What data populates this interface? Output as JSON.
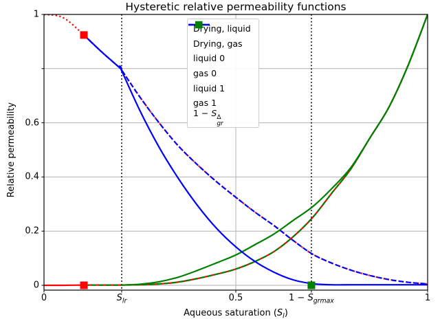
{
  "title": "Hysteretic relative permeability functions",
  "axes": {
    "xlabel": "Aqueous saturation (S_{l})",
    "ylabel": "Relative permeability",
    "xlim": [
      0,
      1
    ],
    "ylim": [
      -0.018,
      1.0
    ],
    "xticks": [
      {
        "value": 0,
        "label": "0"
      },
      {
        "value": 0.2025,
        "label": "S_{lr}"
      },
      {
        "value": 0.5,
        "label": "0.5"
      },
      {
        "value": 0.697,
        "label": "1 − S_{grmax}"
      },
      {
        "value": 1,
        "label": "1"
      }
    ],
    "yticks": [
      {
        "value": 0,
        "label": "0"
      },
      {
        "value": 0.2,
        "label": "0.2"
      },
      {
        "value": 0.4,
        "label": "0.4"
      },
      {
        "value": 0.6,
        "label": "0.6"
      },
      {
        "value": 0.8,
        "label": ""
      },
      {
        "value": 1,
        "label": "1"
      }
    ],
    "grid": {
      "x": [
        0.5
      ],
      "y": [
        0,
        0.2,
        0.4,
        0.6,
        0.8
      ]
    }
  },
  "legend": {
    "items": [
      {
        "label": "Drying, liquid",
        "color": "#ff0000",
        "style": "solid"
      },
      {
        "label": "Drying, gas",
        "color": "#ff0000",
        "style": "dotted"
      },
      {
        "label": "liquid 0",
        "color": "#008000",
        "style": "dashed"
      },
      {
        "label": "gas 0",
        "color": "#0000ff",
        "style": "dashed"
      },
      {
        "label": "liquid 1",
        "color": "#008000",
        "style": "solid"
      },
      {
        "label": "gas 1",
        "color": "#0000ff",
        "style": "solid"
      },
      {
        "label": "1 − S_{gr}^{Δ}",
        "color": "#008000",
        "style": "square"
      }
    ]
  },
  "chart_data": {
    "type": "line",
    "title": "Hysteretic relative permeability functions",
    "xlabel": "Aqueous saturation (S_l)",
    "ylabel": "Relative permeability",
    "xlim": [
      0,
      1
    ],
    "ylim": [
      -0.018,
      1.0
    ],
    "grid": true,
    "legend_position": "upper center",
    "series": [
      {
        "name": "Drying, liquid",
        "color": "#ff0000",
        "style": "solid",
        "x": [
          0,
          0.05,
          0.104,
          0.15,
          0.2,
          0.25,
          0.3,
          0.35,
          0.4,
          0.45,
          0.5,
          0.55,
          0.6,
          0.65,
          0.7,
          0.75,
          0.8,
          0.85,
          0.9,
          0.95,
          1
        ],
        "y": [
          0,
          0,
          0.001,
          0.001,
          0.001,
          0.002,
          0.005,
          0.012,
          0.025,
          0.041,
          0.06,
          0.088,
          0.125,
          0.18,
          0.25,
          0.34,
          0.43,
          0.545,
          0.66,
          0.815,
          1.0
        ]
      },
      {
        "name": "Drying, gas",
        "color": "#ff0000",
        "style": "dotted",
        "x": [
          0,
          0.05,
          0.104,
          0.15,
          0.2,
          0.2,
          0.25,
          0.3,
          0.35,
          0.4,
          0.45,
          0.5,
          0.55,
          0.6,
          0.65,
          0.7,
          0.75,
          0.8,
          0.85,
          0.9,
          0.95,
          1
        ],
        "y": [
          1.0,
          0.988,
          0.924,
          0.862,
          0.8,
          0.8,
          0.695,
          0.6,
          0.515,
          0.445,
          0.382,
          0.325,
          0.27,
          0.22,
          0.165,
          0.115,
          0.082,
          0.056,
          0.036,
          0.021,
          0.011,
          0.005
        ]
      },
      {
        "name": "liquid 0",
        "color": "#008000",
        "style": "dashed",
        "x": [
          0.104,
          0.15,
          0.2,
          0.25,
          0.3,
          0.35,
          0.4,
          0.45,
          0.5,
          0.55,
          0.6,
          0.65,
          0.7,
          0.75,
          0.8,
          0.85,
          0.9,
          0.95,
          1
        ],
        "y": [
          0.001,
          0.001,
          0.001,
          0.002,
          0.005,
          0.012,
          0.025,
          0.041,
          0.06,
          0.088,
          0.125,
          0.18,
          0.25,
          0.34,
          0.43,
          0.545,
          0.66,
          0.815,
          1.0
        ]
      },
      {
        "name": "gas 0",
        "color": "#0000ff",
        "style": "dashed",
        "x": [
          0.104,
          0.15,
          0.2,
          0.2,
          0.25,
          0.3,
          0.35,
          0.4,
          0.45,
          0.5,
          0.55,
          0.6,
          0.65,
          0.7,
          0.75,
          0.8,
          0.85,
          0.9,
          0.95,
          1
        ],
        "y": [
          0.924,
          0.862,
          0.8,
          0.8,
          0.695,
          0.6,
          0.515,
          0.445,
          0.382,
          0.325,
          0.27,
          0.22,
          0.165,
          0.115,
          0.082,
          0.056,
          0.036,
          0.021,
          0.011,
          0.005
        ]
      },
      {
        "name": "liquid 1",
        "color": "#008000",
        "style": "solid",
        "x": [
          0.2,
          0.25,
          0.3,
          0.35,
          0.4,
          0.45,
          0.5,
          0.55,
          0.6,
          0.65,
          0.7,
          0.75,
          0.8,
          0.85,
          0.9,
          0.95,
          1
        ],
        "y": [
          0.001,
          0.004,
          0.013,
          0.03,
          0.055,
          0.083,
          0.112,
          0.15,
          0.19,
          0.24,
          0.29,
          0.357,
          0.435,
          0.545,
          0.66,
          0.815,
          1.0
        ]
      },
      {
        "name": "gas 1",
        "color": "#0000ff",
        "style": "solid",
        "x": [
          0.104,
          0.15,
          0.2,
          0.2,
          0.25,
          0.3,
          0.35,
          0.4,
          0.45,
          0.5,
          0.55,
          0.6,
          0.65,
          0.7,
          0.75,
          0.8,
          0.85,
          0.9,
          0.95,
          1
        ],
        "y": [
          0.924,
          0.862,
          0.8,
          0.8,
          0.645,
          0.51,
          0.395,
          0.295,
          0.21,
          0.142,
          0.088,
          0.048,
          0.02,
          0.006,
          0.002,
          0.002,
          0.002,
          0.002,
          0.002,
          0.002
        ]
      }
    ],
    "vlines": [
      {
        "x": 0.2025,
        "label": "S_{lr}",
        "color": "#000000",
        "style": "dotted"
      },
      {
        "x": 0.697,
        "label": "1 − S_{grmax}",
        "color": "#000000",
        "style": "dotted"
      }
    ],
    "markers": [
      {
        "x": 0.104,
        "y": 0.924,
        "color": "#ff0000",
        "shape": "square",
        "name": "turning-point-gas"
      },
      {
        "x": 0.104,
        "y": 0.0,
        "color": "#ff0000",
        "shape": "square",
        "name": "turning-point-liquid"
      },
      {
        "x": 0.697,
        "y": 0.0,
        "color": "#008000",
        "shape": "square",
        "name": "1-minus-sgr-delta"
      }
    ]
  },
  "colors": {
    "red": "#ff0000",
    "green": "#008000",
    "blue": "#0000ff",
    "grid": "#b0b0b0",
    "vline": "#000000",
    "legend_border": "#cccccc",
    "background": "#ffffff",
    "text": "#000000"
  }
}
